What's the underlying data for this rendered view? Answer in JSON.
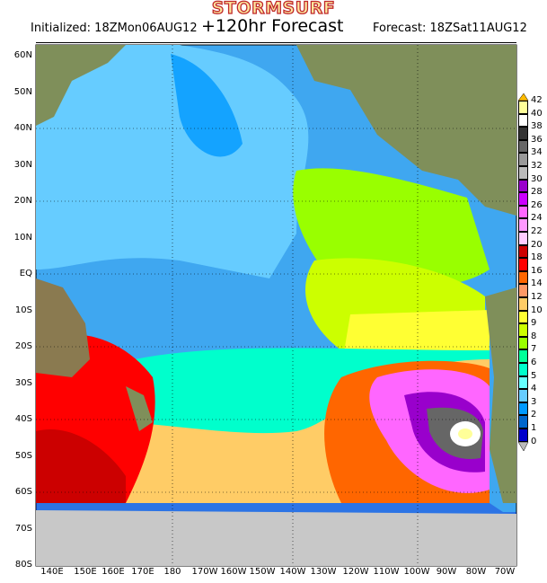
{
  "logo": "STORMSURF",
  "header": {
    "initialized": "Initialized: 18ZMon06AUG12",
    "title": "+120hr Forecast",
    "forecast": "Forecast: 18ZSat11AUG12"
  },
  "lat_labels": [
    "60N",
    "50N",
    "40N",
    "30N",
    "20N",
    "10N",
    "EQ",
    "10S",
    "20S",
    "30S",
    "40S",
    "50S",
    "60S",
    "70S",
    "80S"
  ],
  "lon_labels": [
    "140E",
    "150E",
    "160E",
    "170E",
    "180",
    "170W",
    "160W",
    "150W",
    "140W",
    "130W",
    "120W",
    "110W",
    "100W",
    "90W",
    "80W",
    "70W"
  ],
  "colorbar": {
    "labels": [
      "42",
      "40",
      "38",
      "36",
      "34",
      "32",
      "30",
      "28",
      "26",
      "24",
      "22",
      "20",
      "18",
      "16",
      "14",
      "12",
      "10",
      "9",
      "8",
      "7",
      "6",
      "5",
      "4",
      "3",
      "2",
      "1",
      "0"
    ],
    "colors": [
      "#ffff99",
      "#ffffff",
      "#333333",
      "#666666",
      "#999999",
      "#bbbbbb",
      "#9900cc",
      "#cc00ff",
      "#ff66ff",
      "#ff99ff",
      "#ffccff",
      "#cc0000",
      "#ff0000",
      "#ff6600",
      "#ff9966",
      "#ffcc66",
      "#ffff33",
      "#ccff00",
      "#99ff00",
      "#00ff99",
      "#00ffcc",
      "#66ffff",
      "#66ccff",
      "#0099ff",
      "#0066cc",
      "#0000cc"
    ],
    "top_arrow_color": "#ffbb00",
    "bottom_arrow_color": "#bbbbbb"
  },
  "colors": {
    "land": "#7f8f5a",
    "ice": "#c8c8c8",
    "ocean_base": "#3fa7f0"
  }
}
